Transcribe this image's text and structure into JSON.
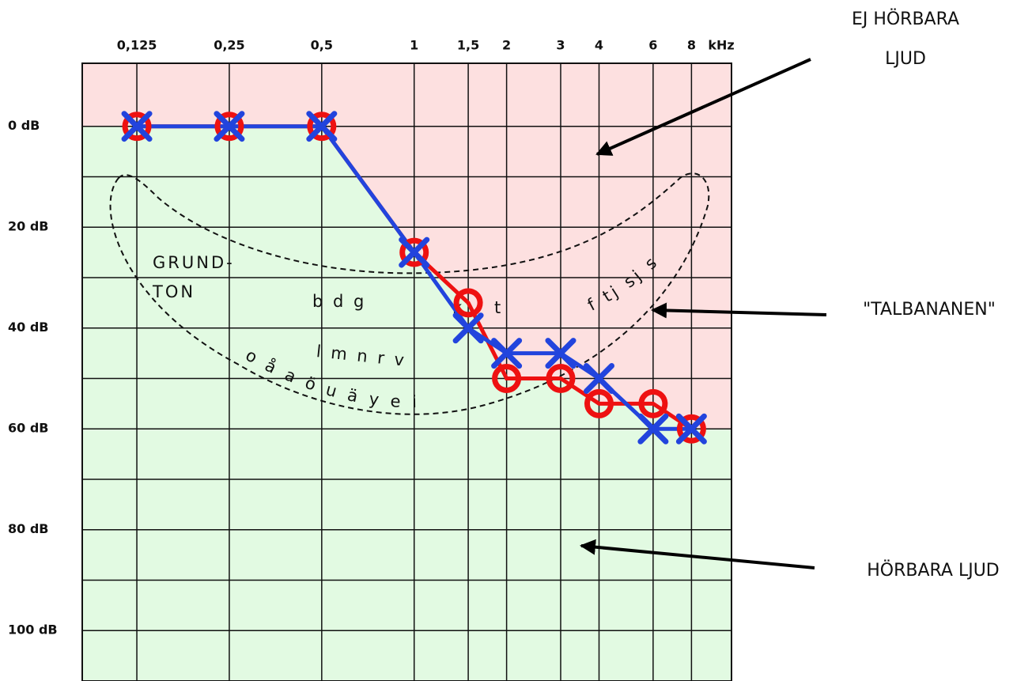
{
  "chart_data": {
    "type": "line",
    "x_label": "kHz",
    "xscale": "log",
    "xlim": [
      0.083,
      10.8
    ],
    "xticks": [
      {
        "value": 0.125,
        "label": "0,125"
      },
      {
        "value": 0.25,
        "label": "0,25"
      },
      {
        "value": 0.5,
        "label": "0,5"
      },
      1,
      {
        "value": 1.5,
        "label": "1,5"
      },
      2,
      3,
      4,
      6,
      8
    ],
    "ylim": [
      -12.5,
      110
    ],
    "y_inverted": true,
    "yticks": [
      {
        "value": 0,
        "label": "0 dB"
      },
      {
        "value": 20,
        "label": "20 dB"
      },
      {
        "value": 40,
        "label": "40 dB"
      },
      {
        "value": 60,
        "label": "60 dB"
      },
      {
        "value": 80,
        "label": "80 dB"
      },
      {
        "value": 100,
        "label": "100 dB"
      }
    ],
    "minor_yticks": [
      10,
      30,
      50,
      70,
      90
    ],
    "grid": true,
    "above_color": "#fde0e0",
    "below_color": "#e2fae2",
    "x": [
      0.125,
      0.25,
      0.5,
      1,
      1.5,
      2,
      3,
      4,
      6,
      8
    ],
    "series": [
      {
        "color": "#ee1111",
        "marker": "o",
        "values": [
          0,
          0,
          0,
          25,
          35,
          50,
          50,
          55,
          55,
          60
        ]
      },
      {
        "color": "#2244dd",
        "marker": "x",
        "values": [
          0,
          0,
          0,
          25,
          40,
          45,
          45,
          50,
          60,
          60
        ]
      }
    ],
    "annotations": [
      "EJ HÖRBARA",
      "LJUD",
      "\"TALBANANEN\"",
      "HÖRBARA LJUD",
      "GRUND-",
      "TON",
      "b d g",
      "l m n r v",
      "k",
      "t",
      "o å a ö u ä y e i",
      "f tj sj s"
    ]
  }
}
